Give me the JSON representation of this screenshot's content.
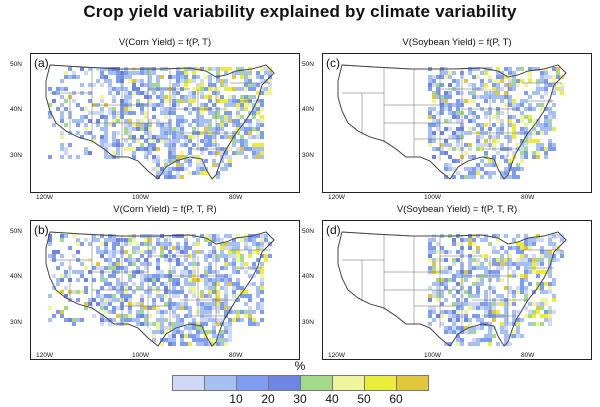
{
  "title": "Crop yield variability explained by climate variability",
  "panels": [
    {
      "label": "(a)",
      "title": "V(Corn Yield) = f(P, T)"
    },
    {
      "label": "(c)",
      "title": "V(Soybean Yield) = f(P, T)"
    },
    {
      "label": "(b)",
      "title": "V(Corn Yield) = f(P, T, R)"
    },
    {
      "label": "(d)",
      "title": "V(Soybean Yield) = f(P, T, R)"
    }
  ],
  "lat_labels": [
    "50N",
    "40N",
    "30N"
  ],
  "lon_labels": [
    "120W",
    "100W",
    "80W"
  ],
  "colorbar": {
    "unit": "%",
    "ticks": [
      "10",
      "20",
      "30",
      "40",
      "50",
      "60"
    ],
    "colors": [
      "#cfd9f6",
      "#a6c0f2",
      "#7f9df0",
      "#6d86e4",
      "#a2d98b",
      "#eef59d",
      "#ecec3b",
      "#e2c63b"
    ]
  }
}
